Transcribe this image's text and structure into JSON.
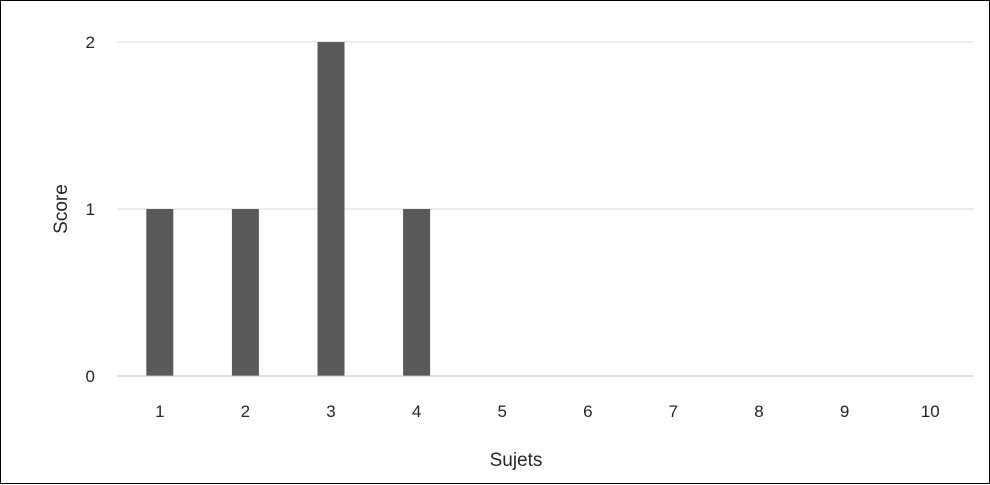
{
  "chart_data": {
    "type": "bar",
    "categories": [
      "1",
      "2",
      "3",
      "4",
      "5",
      "6",
      "7",
      "8",
      "9",
      "10"
    ],
    "values": [
      1,
      1,
      2,
      1,
      0,
      0,
      0,
      0,
      0,
      0
    ],
    "title": "",
    "xlabel": "Sujets",
    "ylabel": "Score",
    "ylim": [
      0,
      2
    ],
    "yticks": [
      "0",
      "1",
      "2"
    ],
    "grid": true,
    "legend": "none",
    "colors": {
      "bar": "#595959",
      "grid": "#d9d9d9",
      "axis": "#bfbfbf",
      "text": "#262626"
    }
  }
}
